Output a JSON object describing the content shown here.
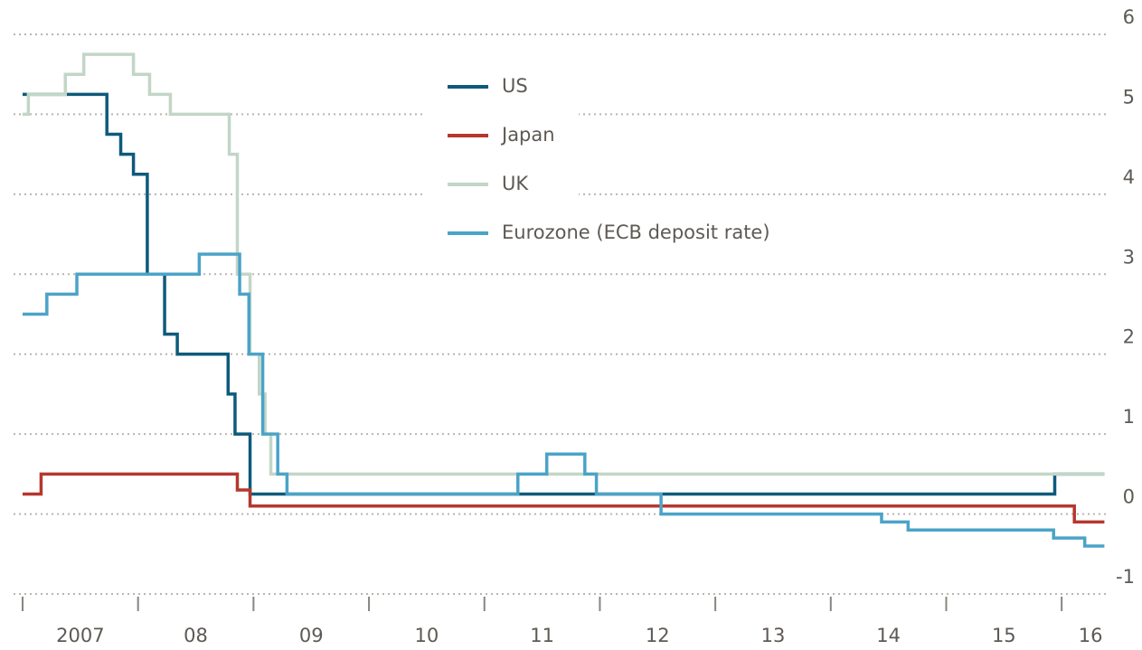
{
  "chart_data": {
    "type": "line",
    "step": true,
    "xlim": [
      2007,
      2016.5
    ],
    "xticks": [
      {
        "value": 2007,
        "label": "2007"
      },
      {
        "value": 2008,
        "label": "08"
      },
      {
        "value": 2009,
        "label": "09"
      },
      {
        "value": 2010,
        "label": "10"
      },
      {
        "value": 2011,
        "label": "11"
      },
      {
        "value": 2012,
        "label": "12"
      },
      {
        "value": 2013,
        "label": "13"
      },
      {
        "value": 2014,
        "label": "14"
      },
      {
        "value": 2015,
        "label": "15"
      },
      {
        "value": 2016,
        "label": "16"
      }
    ],
    "ylim": [
      -1,
      6
    ],
    "yticks": [
      -1,
      0,
      1,
      2,
      3,
      4,
      5,
      6
    ],
    "grid": true,
    "legend": "top",
    "series": [
      {
        "name": "US",
        "color": "#0e5a7c",
        "x": [
          2007,
          2007.73,
          2007.85,
          2007.96,
          2008.08,
          2008.23,
          2008.34,
          2008.78,
          2008.84,
          2008.97,
          2015.94,
          2016.37
        ],
        "values": [
          5.25,
          4.75,
          4.5,
          4.25,
          3.0,
          2.25,
          2.0,
          1.5,
          1.0,
          0.25,
          0.5,
          0.5
        ]
      },
      {
        "name": "Japan",
        "color": "#b5372e",
        "x": [
          2007,
          2007.16,
          2008.86,
          2008.97,
          2016.11,
          2016.37
        ],
        "values": [
          0.25,
          0.5,
          0.3,
          0.1,
          -0.1,
          -0.1
        ]
      },
      {
        "name": "UK",
        "color": "#c2d6c7",
        "x": [
          2007,
          2007.05,
          2007.37,
          2007.53,
          2007.96,
          2008.1,
          2008.28,
          2008.79,
          2008.86,
          2008.97,
          2009.05,
          2009.1,
          2009.15,
          2016.37
        ],
        "values": [
          5.0,
          5.25,
          5.5,
          5.75,
          5.5,
          5.25,
          5.0,
          4.5,
          3.0,
          2.0,
          1.5,
          1.0,
          0.5,
          0.5
        ]
      },
      {
        "name": "Eurozone (ECB deposit rate)",
        "color": "#4ba3c8",
        "x": [
          2007,
          2007.21,
          2007.47,
          2008.53,
          2008.88,
          2008.96,
          2009.08,
          2009.21,
          2009.29,
          2011.29,
          2011.54,
          2011.87,
          2011.97,
          2012.53,
          2014.44,
          2014.67,
          2015.93,
          2016.2,
          2016.37
        ],
        "values": [
          2.5,
          2.75,
          3.0,
          3.25,
          2.75,
          2.0,
          1.0,
          0.5,
          0.25,
          0.5,
          0.75,
          0.5,
          0.25,
          0,
          -0.1,
          -0.2,
          -0.3,
          -0.4,
          -0.4
        ]
      }
    ]
  }
}
